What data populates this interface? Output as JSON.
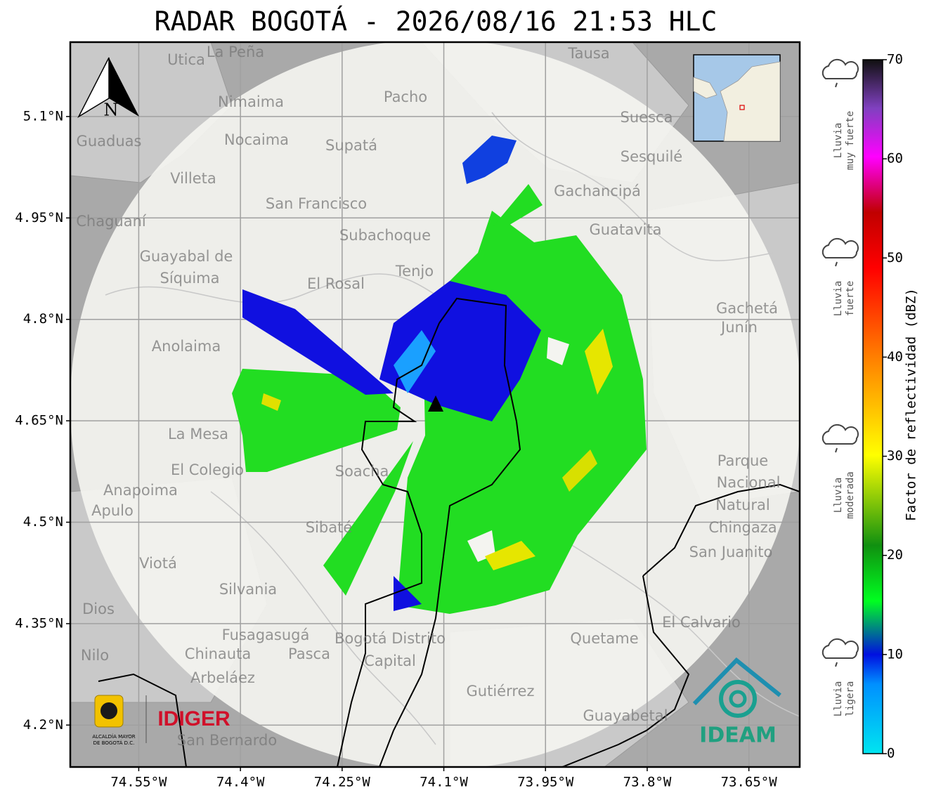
{
  "title": "RADAR BOGOTÁ - 2026/08/16 21:53 HLC",
  "map": {
    "xlim": [
      -74.651,
      -73.575
    ],
    "ylim": [
      4.138,
      5.21
    ],
    "xticks": [
      {
        "value": -74.55,
        "label": "74.55°W"
      },
      {
        "value": -74.4,
        "label": "74.4°W"
      },
      {
        "value": -74.25,
        "label": "74.25°W"
      },
      {
        "value": -74.1,
        "label": "74.1°W"
      },
      {
        "value": -73.95,
        "label": "73.95°W"
      },
      {
        "value": -73.8,
        "label": "73.8°W"
      },
      {
        "value": -73.65,
        "label": "73.65°W"
      }
    ],
    "yticks": [
      {
        "value": 5.1,
        "label": "5.1°N"
      },
      {
        "value": 4.95,
        "label": "4.95°N"
      },
      {
        "value": 4.8,
        "label": "4.8°N"
      },
      {
        "value": 4.65,
        "label": "4.65°N"
      },
      {
        "value": 4.5,
        "label": "4.5°N"
      },
      {
        "value": 4.35,
        "label": "4.35°N"
      },
      {
        "value": 4.2,
        "label": "4.2°N"
      }
    ],
    "grid": true,
    "north": "N",
    "places": [
      "La Peña",
      "Utica",
      "Tausa",
      "Pacho",
      "Nimaima",
      "Suesca",
      "Guaduas",
      "Nocaima",
      "Supatá",
      "Sesquilé",
      "Villeta",
      "Gachancipá",
      "San Francisco",
      "Chaguaní",
      "Guatavita",
      "Subachoque",
      "Guayabal de",
      "Síquima",
      "Tenjo",
      "El Rosal",
      "Gachetá",
      "Junín",
      "Anolaima",
      "La Mesa",
      "El Colegio",
      "Soacha",
      "Parque",
      "Nacional",
      "Natural",
      "Chingaza",
      "Anapoima",
      "Apulo",
      "Sibaté",
      "San Juanito",
      "Viotá",
      "Silvania",
      "Dios",
      "El Calvario",
      "Fusagasugá",
      "Bogotá Distrito",
      "Capital",
      "Quetame",
      "Nilo",
      "Chinauta",
      "Pasca",
      "Arbeláez",
      "Gutiérrez",
      "Guayabetal",
      "San Bernardo"
    ]
  },
  "logos": {
    "alcaldia": [
      "ALCALDÍA MAYOR",
      "DE BOGOTÁ D.C."
    ],
    "idiger": "IDIGER",
    "ideam": "IDEAM"
  },
  "colorbar": {
    "label": "Factor de reflectividad (dBZ)",
    "lim": [
      0,
      70
    ],
    "ticks": [
      0,
      10,
      20,
      30,
      40,
      50,
      60,
      70
    ],
    "categories": [
      {
        "lines": [
          "Lluvia",
          "muy fuerte"
        ]
      },
      {
        "lines": [
          "Lluvia",
          "fuerte"
        ]
      },
      {
        "lines": [
          "Lluvia",
          "moderada"
        ]
      },
      {
        "lines": [
          "Lluvia",
          "ligera"
        ]
      }
    ]
  }
}
